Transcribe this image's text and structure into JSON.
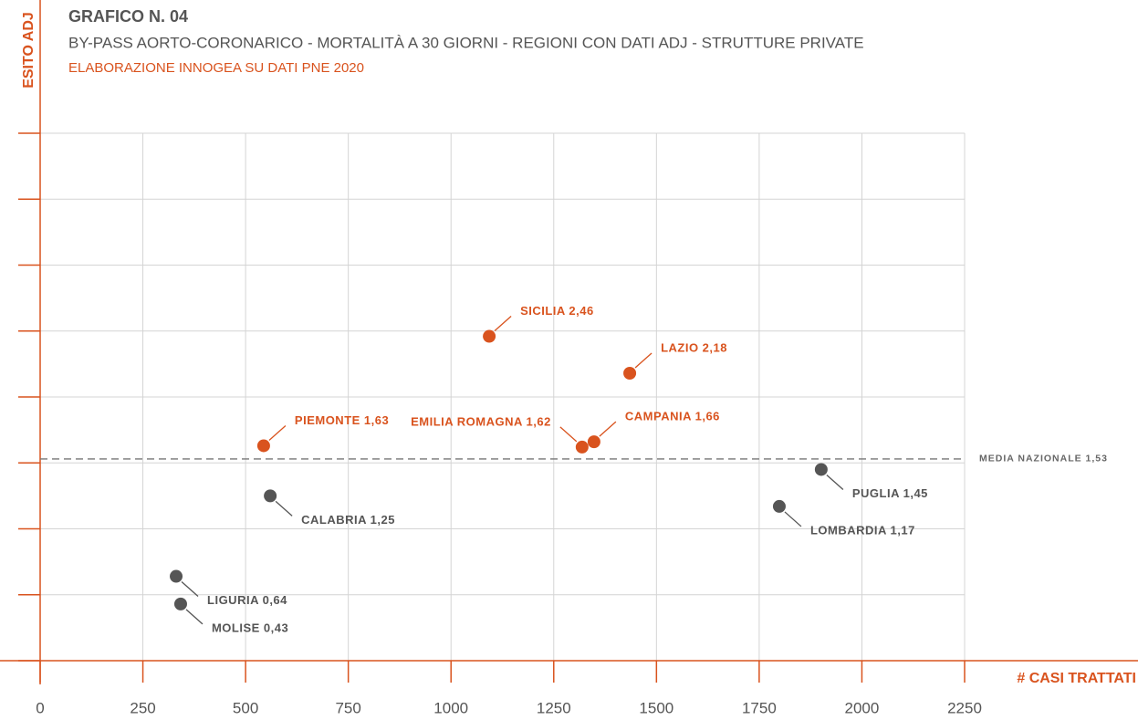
{
  "chart_data": {
    "type": "scatter",
    "title": "GRAFICO N. 04",
    "subtitle": "BY-PASS AORTO-CORONARICO - MORTALITÀ A 30 GIORNI - REGIONI CON DATI ADJ - STRUTTURE PRIVATE",
    "source": "ELABORAZIONE INNOGEA SU DATI PNE 2020",
    "x_label": "# CASI TRATTATI",
    "y_label": "ESITO ADJ",
    "x": [
      1093,
      1435,
      544,
      1319,
      1348,
      560,
      1901,
      1799,
      331,
      342
    ],
    "values": [
      2.46,
      2.18,
      1.63,
      1.62,
      1.66,
      1.25,
      1.45,
      1.17,
      0.64,
      0.43
    ],
    "value_labels": [
      "SICILIA 2,46",
      "LAZIO 2,18",
      "PIEMONTE 1,63",
      "EMILIA ROMAGNA 1,62",
      "CAMPANIA 1,66",
      "CALABRIA 1,25",
      "PUGLIA 1,45",
      "LOMBARDIA 1,17",
      "LIGURIA 0,64",
      "MOLISE 0,43"
    ],
    "colors": [
      "#d9531e",
      "#d9531e",
      "#d9531e",
      "#d9531e",
      "#d9531e",
      "#555555",
      "#555555",
      "#555555",
      "#555555",
      "#555555"
    ],
    "reference_line": {
      "value": 1.53,
      "label": "MEDIA NAZIONALE 1,53"
    },
    "xlim": [
      0,
      2250
    ],
    "xticks": [
      0,
      250,
      500,
      750,
      1000,
      1250,
      1500,
      1750,
      2000,
      2250
    ],
    "ylim": [
      0,
      4
    ],
    "yticks": [
      0,
      0.5,
      1,
      1.5,
      2,
      2.5,
      3,
      3.5,
      4
    ],
    "grid": true
  }
}
